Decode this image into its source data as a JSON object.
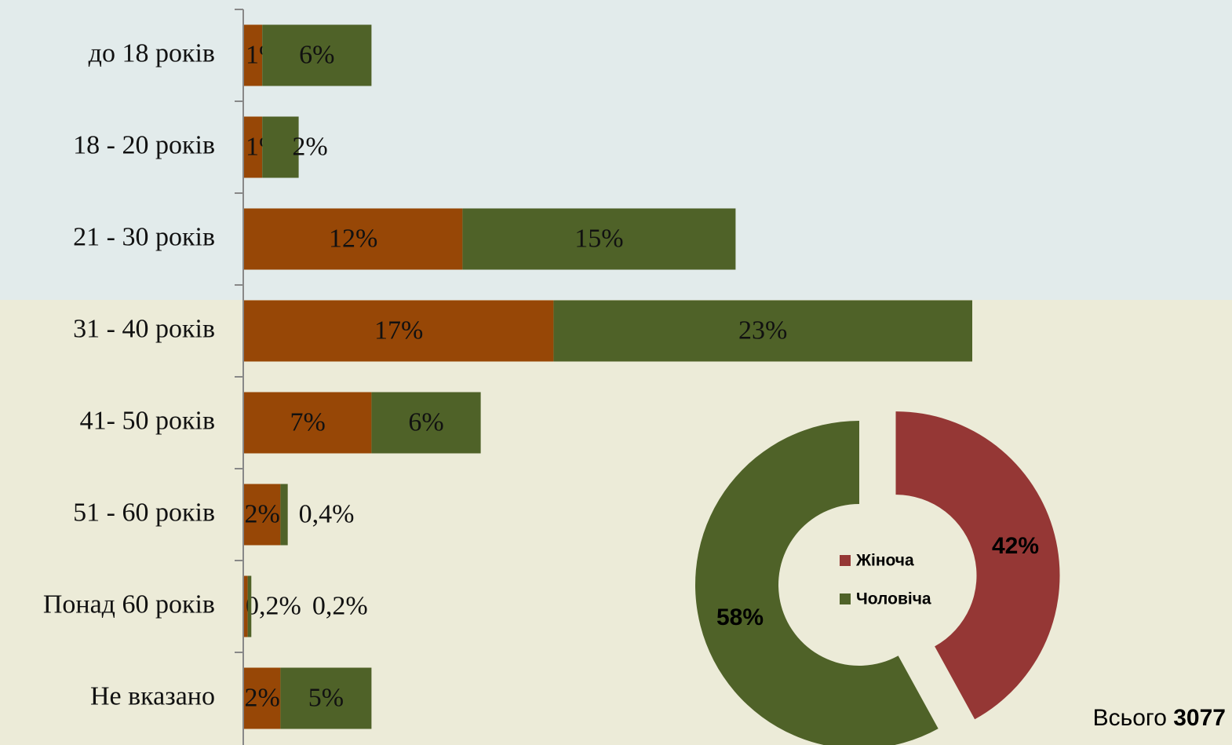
{
  "chart_data": [
    {
      "type": "stacked-bar-horizontal",
      "categories": [
        "до 18 років",
        "18 - 20 років",
        "21 - 30 років",
        "31 - 40 років",
        "41- 50 років",
        "51 - 60 років",
        "Понад 60 років",
        "Не вказано"
      ],
      "series": [
        {
          "color": "#974706",
          "values": [
            1,
            1,
            12,
            17,
            7,
            2,
            0.2,
            2
          ],
          "value_labels": [
            "1%",
            "1%",
            "12%",
            "17%",
            "7%",
            "2%",
            "0,2%",
            "2%"
          ]
        },
        {
          "color": "#4f6228",
          "values": [
            6,
            2,
            15,
            23,
            6,
            0.4,
            0.2,
            5
          ],
          "value_labels": [
            "6%",
            "2%",
            "15%",
            "23%",
            "6%",
            "0,4%",
            "0,2%",
            "5%"
          ]
        }
      ]
    },
    {
      "type": "donut",
      "categories": [
        "Жіноча",
        "Чоловіча"
      ],
      "values": [
        42,
        58
      ],
      "value_labels": [
        "42%",
        "58%"
      ],
      "colors": [
        "#953735",
        "#4f6228"
      ],
      "exploded": [
        true,
        false
      ],
      "total": {
        "label": "Всього",
        "value": 3077
      }
    }
  ]
}
